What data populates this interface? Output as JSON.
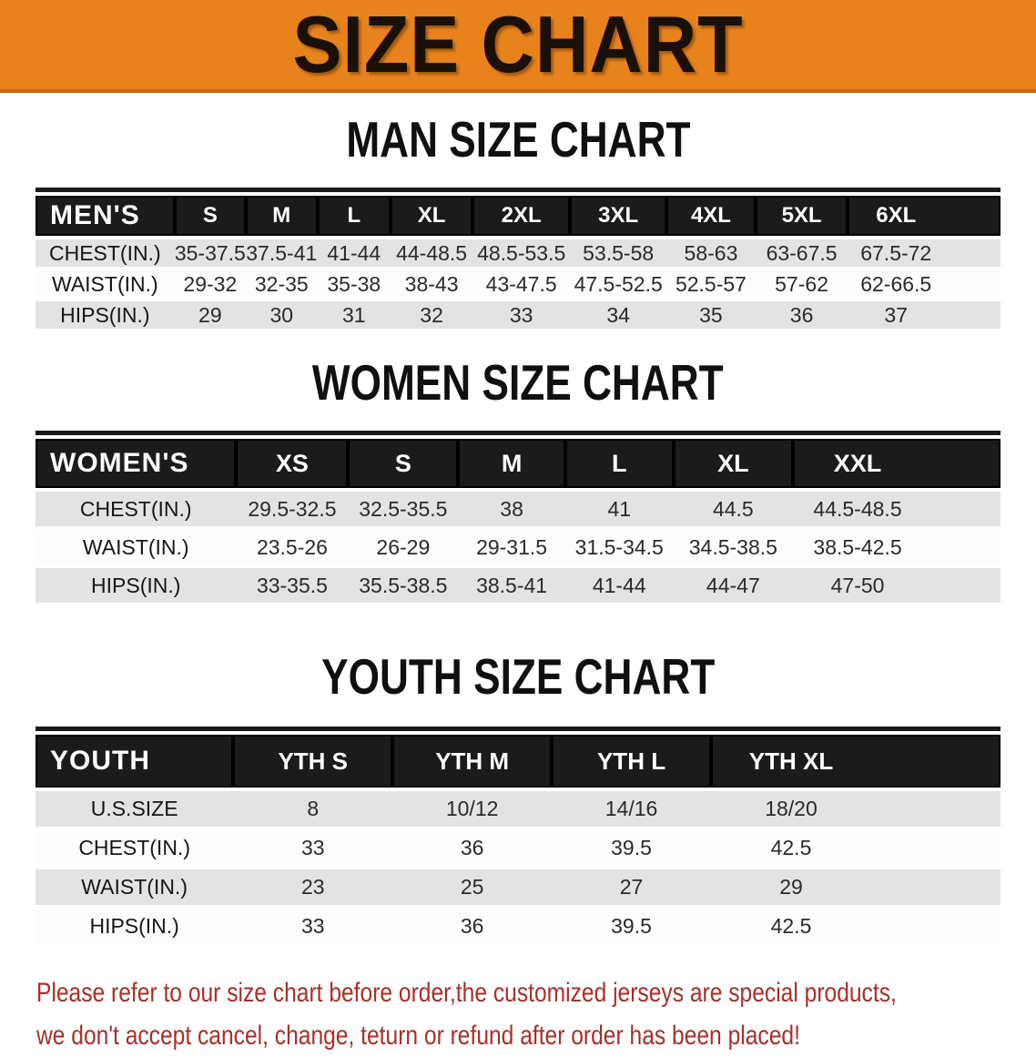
{
  "banner": {
    "title": "SIZE CHART"
  },
  "sections": [
    {
      "heading": "MAN SIZE CHART",
      "table": {
        "label": "MEN'S",
        "columns": [
          "S",
          "M",
          "L",
          "XL",
          "2XL",
          "3XL",
          "4XL",
          "5XL",
          "6XL"
        ],
        "rows": [
          {
            "label": "CHEST(IN.)",
            "values": [
              "35-37.5",
              "37.5-41",
              "41-44",
              "44-48.5",
              "48.5-53.5",
              "53.5-58",
              "58-63",
              "63-67.5",
              "67.5-72"
            ]
          },
          {
            "label": "WAIST(IN.)",
            "values": [
              "29-32",
              "32-35",
              "35-38",
              "38-43",
              "43-47.5",
              "47.5-52.5",
              "52.5-57",
              "57-62",
              "62-66.5"
            ]
          },
          {
            "label": "HIPS(IN.)",
            "values": [
              "29",
              "30",
              "31",
              "32",
              "33",
              "34",
              "35",
              "36",
              "37"
            ]
          }
        ]
      }
    },
    {
      "heading": "WOMEN SIZE CHART",
      "table": {
        "label": "WOMEN'S",
        "columns": [
          "XS",
          "S",
          "M",
          "L",
          "XL",
          "XXL"
        ],
        "rows": [
          {
            "label": "CHEST(IN.)",
            "values": [
              "29.5-32.5",
              "32.5-35.5",
              "38",
              "41",
              "44.5",
              "44.5-48.5"
            ]
          },
          {
            "label": "WAIST(IN.)",
            "values": [
              "23.5-26",
              "26-29",
              "29-31.5",
              "31.5-34.5",
              "34.5-38.5",
              "38.5-42.5"
            ]
          },
          {
            "label": "HIPS(IN.)",
            "values": [
              "33-35.5",
              "35.5-38.5",
              "38.5-41",
              "41-44",
              "44-47",
              "47-50"
            ]
          }
        ]
      }
    },
    {
      "heading": "YOUTH SIZE CHART",
      "table": {
        "label": "YOUTH",
        "columns": [
          "YTH S",
          "YTH M",
          "YTH L",
          "YTH XL"
        ],
        "rows": [
          {
            "label": "U.S.SIZE",
            "values": [
              "8",
              "10/12",
              "14/16",
              "18/20"
            ]
          },
          {
            "label": "CHEST(IN.)",
            "values": [
              "33",
              "36",
              "39.5",
              "42.5"
            ]
          },
          {
            "label": "WAIST(IN.)",
            "values": [
              "23",
              "25",
              "27",
              "29"
            ]
          },
          {
            "label": "HIPS(IN.)",
            "values": [
              "33",
              "36",
              "39.5",
              "42.5"
            ]
          }
        ]
      }
    }
  ],
  "notice": {
    "line1": "Please refer to our size chart before order,the customized jerseys are special products,",
    "line2": "we don't accept cancel, change, teturn or refund after order has been placed!"
  },
  "colors": {
    "accent_orange": "#E8821C",
    "accent_orange_dark": "#C56A10",
    "banner_text": "#1A1008",
    "header_black": "#1B1B1B",
    "row_shaded": "#E3E3E3",
    "row_plain": "#FDFDFD",
    "notice_red": "#A6302A"
  }
}
